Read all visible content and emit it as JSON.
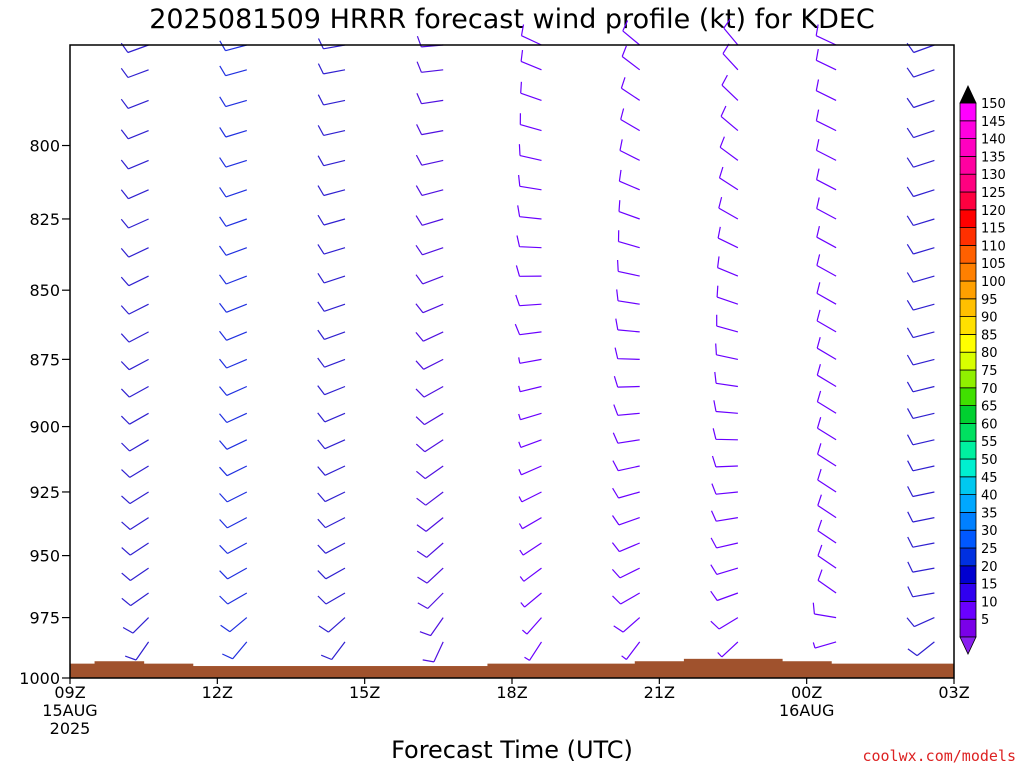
{
  "chart_data": {
    "type": "wind-barb-profile",
    "title": "2025081509 HRRR forecast wind profile (kt) for KDEC",
    "xlabel": "Forecast Time (UTC)",
    "ylabel": "",
    "y_axis": {
      "ticks": [
        800,
        825,
        850,
        875,
        900,
        925,
        950,
        975,
        1000
      ],
      "range": [
        1000,
        767
      ],
      "inverted": true
    },
    "x_axis": {
      "ticks": [
        {
          "label": "09Z",
          "hour": 0
        },
        {
          "label": "12Z",
          "hour": 3
        },
        {
          "label": "15Z",
          "hour": 6
        },
        {
          "label": "18Z",
          "hour": 9
        },
        {
          "label": "21Z",
          "hour": 12
        },
        {
          "label": "00Z",
          "hour": 15
        },
        {
          "label": "03Z",
          "hour": 18
        }
      ],
      "date_labels": [
        {
          "text": "15AUG",
          "hour": 0
        },
        {
          "text": "2025",
          "hour": 0
        },
        {
          "text": "16AUG",
          "hour": 15
        }
      ],
      "range": [
        0,
        18
      ]
    },
    "grid": false,
    "legend": "colorbar-right",
    "colorbar": {
      "labels": [
        "5",
        "10",
        "15",
        "20",
        "25",
        "30",
        "35",
        "40",
        "45",
        "50",
        "55",
        "60",
        "65",
        "70",
        "75",
        "80",
        "85",
        "90",
        "95",
        "100",
        "105",
        "110",
        "115",
        "120",
        "125",
        "130",
        "135",
        "140",
        "145",
        "150"
      ],
      "colors": [
        "#7a00e8",
        "#6a00ff",
        "#3000f0",
        "#0000d0",
        "#0030e0",
        "#0058ff",
        "#0080ff",
        "#00a8ff",
        "#00c8f0",
        "#00f0d0",
        "#00f0a0",
        "#00e060",
        "#00d030",
        "#40e000",
        "#90f000",
        "#d8ff00",
        "#ffff00",
        "#ffe000",
        "#ffc000",
        "#ffa000",
        "#ff8000",
        "#ff6000",
        "#ff3000",
        "#ff0000",
        "#ff0040",
        "#ff0080",
        "#ff00a0",
        "#ff00c0",
        "#ff00e0",
        "#ff00ff"
      ]
    },
    "terrain_color": "#a0522d",
    "surface_pressure": [
      {
        "from": 0.0,
        "to": 0.5,
        "p": 994
      },
      {
        "from": 0.5,
        "to": 1.5,
        "p": 993
      },
      {
        "from": 1.5,
        "to": 2.5,
        "p": 994
      },
      {
        "from": 2.5,
        "to": 8.5,
        "p": 995
      },
      {
        "from": 8.5,
        "to": 11.5,
        "p": 994
      },
      {
        "from": 11.5,
        "to": 12.5,
        "p": 993
      },
      {
        "from": 12.5,
        "to": 14.5,
        "p": 992
      },
      {
        "from": 14.5,
        "to": 15.5,
        "p": 993
      },
      {
        "from": 15.5,
        "to": 18.0,
        "p": 994
      }
    ],
    "wind_columns": [
      {
        "hour": 1.6,
        "top": [
          250,
          8
        ],
        "low": [
          235,
          10
        ],
        "near_sfc": [
          200,
          9
        ],
        "color": "#3020d0"
      },
      {
        "hour": 3.6,
        "top": [
          255,
          9
        ],
        "low": [
          240,
          12
        ],
        "near_sfc": [
          205,
          10
        ],
        "color": "#2030e0"
      },
      {
        "hour": 5.6,
        "top": [
          260,
          9
        ],
        "low": [
          240,
          11
        ],
        "near_sfc": [
          200,
          9
        ],
        "color": "#3020d0"
      },
      {
        "hour": 7.6,
        "top": [
          265,
          10
        ],
        "low": [
          225,
          9
        ],
        "near_sfc": [
          190,
          8
        ],
        "color": "#5010e0"
      },
      {
        "hour": 9.6,
        "top": [
          295,
          8
        ],
        "low": [
          230,
          7
        ],
        "near_sfc": [
          200,
          6
        ],
        "color": "#6a00ff"
      },
      {
        "hour": 11.6,
        "top": [
          310,
          9
        ],
        "low": [
          240,
          8
        ],
        "near_sfc": [
          200,
          7
        ],
        "color": "#6a00ff"
      },
      {
        "hour": 13.6,
        "top": [
          320,
          9
        ],
        "low": [
          250,
          8
        ],
        "near_sfc": [
          210,
          7
        ],
        "color": "#6a00ff"
      },
      {
        "hour": 15.6,
        "top": [
          295,
          9
        ],
        "low": [
          305,
          8
        ],
        "near_sfc": [
          215,
          7
        ],
        "color": "#6a00ff"
      },
      {
        "hour": 17.6,
        "top": [
          250,
          8
        ],
        "low": [
          260,
          9
        ],
        "near_sfc": [
          210,
          8
        ],
        "color": "#3020d0"
      }
    ],
    "levels": [
      767,
      775,
      785,
      795,
      805,
      815,
      825,
      835,
      845,
      855,
      865,
      875,
      885,
      895,
      905,
      915,
      925,
      935,
      945,
      955,
      965,
      975,
      985
    ]
  },
  "credit": "coolwx.com/models"
}
